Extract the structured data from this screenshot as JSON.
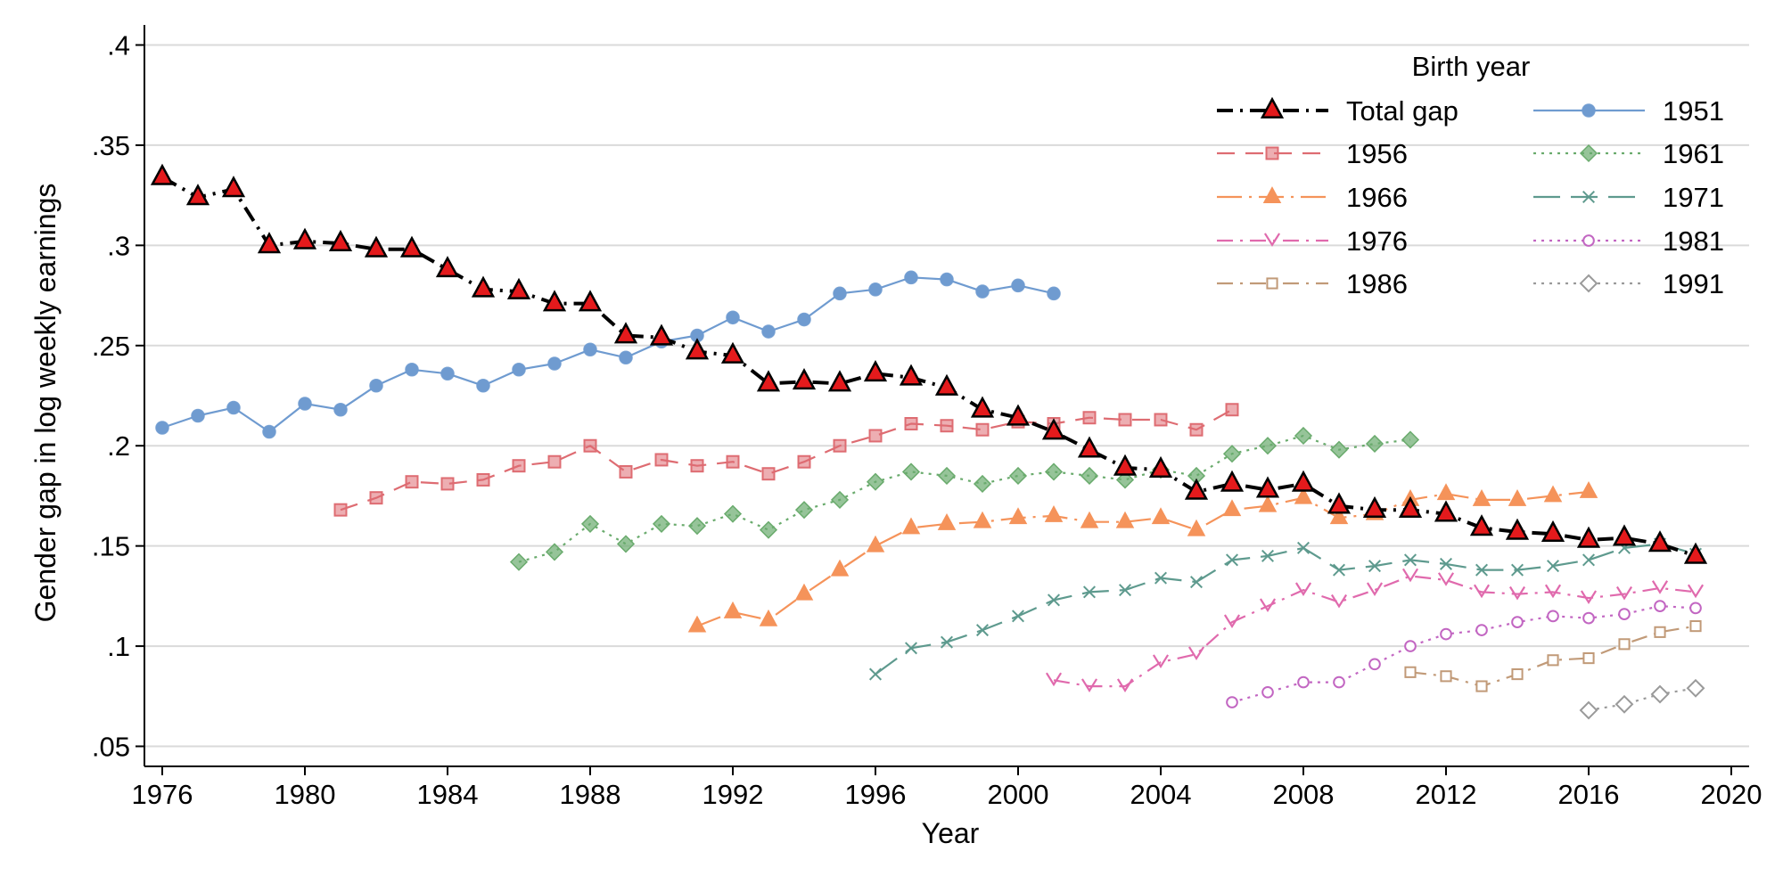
{
  "chart_data": {
    "type": "line",
    "title": "",
    "xlabel": "Year",
    "ylabel": "Gender gap in log weekly earnings",
    "xlim": [
      1975.5,
      2020.5
    ],
    "ylim": [
      0.04,
      0.41
    ],
    "xticks": [
      1976,
      1980,
      1984,
      1988,
      1992,
      1996,
      2000,
      2004,
      2008,
      2012,
      2016,
      2020
    ],
    "xtick_labels": [
      "1976",
      "1980",
      "1984",
      "1988",
      "1992",
      "1996",
      "2000",
      "2004",
      "2008",
      "2012",
      "2016",
      "2020"
    ],
    "yticks": [
      0.05,
      0.1,
      0.15,
      0.2,
      0.25,
      0.3,
      0.35,
      0.4
    ],
    "ytick_labels": [
      ".05",
      ".1",
      ".15",
      ".2",
      ".25",
      ".3",
      ".35",
      ".4"
    ],
    "grid": true,
    "legend_title": "Birth year",
    "legend_position": "top-right",
    "series": [
      {
        "name": "Total gap",
        "color": "#000000",
        "marker_fill": "#e41a1c",
        "marker": "triangle",
        "dash": "dashdot",
        "x": [
          1976,
          1977,
          1978,
          1979,
          1980,
          1981,
          1982,
          1983,
          1984,
          1985,
          1986,
          1987,
          1988,
          1989,
          1990,
          1991,
          1992,
          1993,
          1994,
          1995,
          1996,
          1997,
          1998,
          1999,
          2000,
          2001,
          2002,
          2003,
          2004,
          2005,
          2006,
          2007,
          2008,
          2009,
          2010,
          2011,
          2012,
          2013,
          2014,
          2015,
          2016,
          2017,
          2018,
          2019
        ],
        "values": [
          0.334,
          0.324,
          0.328,
          0.3,
          0.302,
          0.301,
          0.298,
          0.298,
          0.288,
          0.278,
          0.277,
          0.271,
          0.271,
          0.255,
          0.254,
          0.247,
          0.245,
          0.231,
          0.232,
          0.231,
          0.236,
          0.234,
          0.229,
          0.218,
          0.214,
          0.207,
          0.198,
          0.189,
          0.188,
          0.177,
          0.181,
          0.178,
          0.181,
          0.17,
          0.168,
          0.168,
          0.166,
          0.159,
          0.157,
          0.156,
          0.153,
          0.154,
          0.151,
          0.145
        ]
      },
      {
        "name": "1951",
        "color": "#6f9bd0",
        "marker": "circle",
        "dash": "solid",
        "x": [
          1976,
          1977,
          1978,
          1979,
          1980,
          1981,
          1982,
          1983,
          1984,
          1985,
          1986,
          1987,
          1988,
          1989,
          1990,
          1991,
          1992,
          1993,
          1994,
          1995,
          1996,
          1997,
          1998,
          1999,
          2000,
          2001
        ],
        "values": [
          0.209,
          0.215,
          0.219,
          0.207,
          0.221,
          0.218,
          0.23,
          0.238,
          0.236,
          0.23,
          0.238,
          0.241,
          0.248,
          0.244,
          0.252,
          0.255,
          0.264,
          0.257,
          0.263,
          0.276,
          0.278,
          0.284,
          0.283,
          0.277,
          0.28,
          0.276
        ]
      },
      {
        "name": "1956",
        "color": "#de6c72",
        "marker": "square",
        "dash": "dash",
        "x": [
          1981,
          1982,
          1983,
          1984,
          1985,
          1986,
          1987,
          1988,
          1989,
          1990,
          1991,
          1992,
          1993,
          1994,
          1995,
          1996,
          1997,
          1998,
          1999,
          2000,
          2001,
          2002,
          2003,
          2004,
          2005,
          2006
        ],
        "values": [
          0.168,
          0.174,
          0.182,
          0.181,
          0.183,
          0.19,
          0.192,
          0.2,
          0.187,
          0.193,
          0.19,
          0.192,
          0.186,
          0.192,
          0.2,
          0.205,
          0.211,
          0.21,
          0.208,
          0.212,
          0.211,
          0.214,
          0.213,
          0.213,
          0.208,
          0.218
        ]
      },
      {
        "name": "1961",
        "color": "#6aab6d",
        "marker": "diamond",
        "dash": "dot",
        "x": [
          1986,
          1987,
          1988,
          1989,
          1990,
          1991,
          1992,
          1993,
          1994,
          1995,
          1996,
          1997,
          1998,
          1999,
          2000,
          2001,
          2002,
          2003,
          2004,
          2005,
          2006,
          2007,
          2008,
          2009,
          2010,
          2011
        ],
        "values": [
          0.142,
          0.147,
          0.161,
          0.151,
          0.161,
          0.16,
          0.166,
          0.158,
          0.168,
          0.173,
          0.182,
          0.187,
          0.185,
          0.181,
          0.185,
          0.187,
          0.185,
          0.183,
          0.188,
          0.185,
          0.196,
          0.2,
          0.205,
          0.198,
          0.201,
          0.203
        ]
      },
      {
        "name": "1966",
        "color": "#f5935a",
        "marker": "triangle",
        "dash": "longdashdot",
        "x": [
          1991,
          1992,
          1993,
          1994,
          1995,
          1996,
          1997,
          1998,
          1999,
          2000,
          2001,
          2002,
          2003,
          2004,
          2005,
          2006,
          2007,
          2008,
          2009,
          2010,
          2011,
          2012,
          2013,
          2014,
          2015,
          2016
        ],
        "values": [
          0.11,
          0.117,
          0.113,
          0.126,
          0.138,
          0.15,
          0.159,
          0.161,
          0.162,
          0.164,
          0.165,
          0.162,
          0.162,
          0.164,
          0.158,
          0.168,
          0.17,
          0.174,
          0.164,
          0.166,
          0.173,
          0.176,
          0.173,
          0.173,
          0.175,
          0.177
        ]
      },
      {
        "name": "1971",
        "color": "#5e9a8e",
        "marker": "x",
        "dash": "longdash",
        "x": [
          1996,
          1997,
          1998,
          1999,
          2000,
          2001,
          2002,
          2003,
          2004,
          2005,
          2006,
          2007,
          2008,
          2009,
          2010,
          2011,
          2012,
          2013,
          2014,
          2015,
          2016,
          2017,
          2018,
          2019
        ],
        "values": [
          0.086,
          0.099,
          0.102,
          0.108,
          0.115,
          0.123,
          0.127,
          0.128,
          0.134,
          0.132,
          0.143,
          0.145,
          0.149,
          0.138,
          0.14,
          0.143,
          0.141,
          0.138,
          0.138,
          0.14,
          0.143,
          0.149,
          0.151,
          0.146
        ]
      },
      {
        "name": "1976",
        "color": "#e06aad",
        "marker": "v",
        "dash": "dashdot",
        "x": [
          2001,
          2002,
          2003,
          2004,
          2005,
          2006,
          2007,
          2008,
          2009,
          2010,
          2011,
          2012,
          2013,
          2014,
          2015,
          2016,
          2017,
          2018,
          2019
        ],
        "values": [
          0.083,
          0.08,
          0.08,
          0.092,
          0.096,
          0.112,
          0.12,
          0.128,
          0.122,
          0.128,
          0.135,
          0.133,
          0.127,
          0.126,
          0.127,
          0.124,
          0.126,
          0.129,
          0.127
        ]
      },
      {
        "name": "1981",
        "color": "#c266c2",
        "marker": "circle-hollow",
        "dash": "dot",
        "x": [
          2006,
          2007,
          2008,
          2009,
          2010,
          2011,
          2012,
          2013,
          2014,
          2015,
          2016,
          2017,
          2018,
          2019
        ],
        "values": [
          0.072,
          0.077,
          0.082,
          0.082,
          0.091,
          0.1,
          0.106,
          0.108,
          0.112,
          0.115,
          0.114,
          0.116,
          0.12,
          0.119
        ]
      },
      {
        "name": "1986",
        "color": "#c19a78",
        "marker": "square-hollow",
        "dash": "dashdot",
        "x": [
          2011,
          2012,
          2013,
          2014,
          2015,
          2016,
          2017,
          2018,
          2019
        ],
        "values": [
          0.087,
          0.085,
          0.08,
          0.086,
          0.093,
          0.094,
          0.101,
          0.107,
          0.11
        ]
      },
      {
        "name": "1991",
        "color": "#9a9a9a",
        "marker": "diamond-hollow",
        "dash": "dot",
        "x": [
          2016,
          2017,
          2018,
          2019
        ],
        "values": [
          0.068,
          0.071,
          0.076,
          0.079
        ]
      }
    ]
  }
}
